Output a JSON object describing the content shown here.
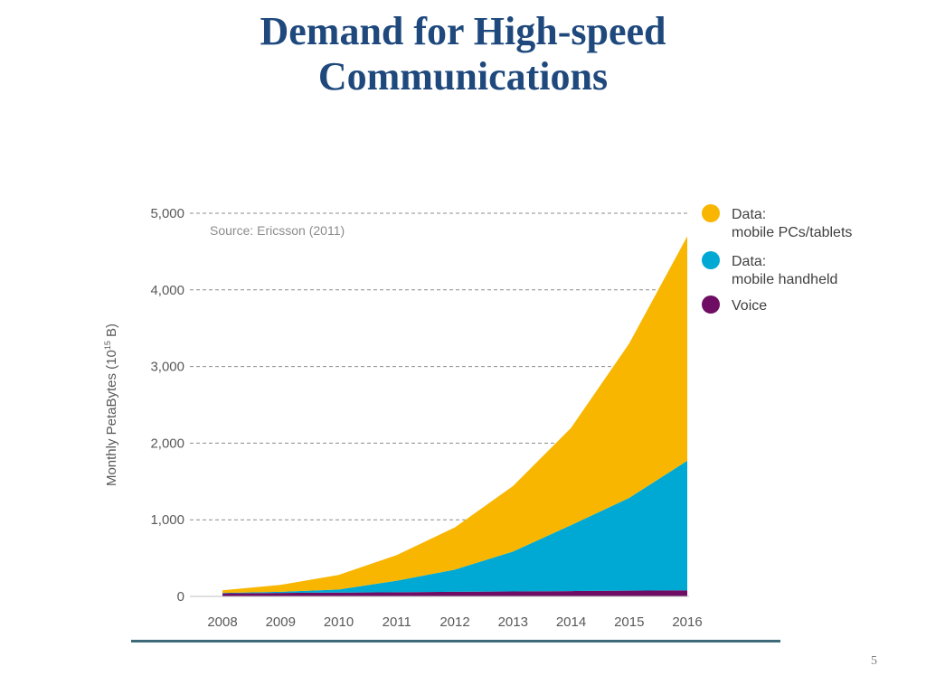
{
  "slide": {
    "title_line1": "Demand for High-speed",
    "title_line2": "Communications",
    "page_number": "5"
  },
  "chart_data": {
    "type": "area",
    "stacked": true,
    "annotation": "Source: Ericsson (2011)",
    "ylabel": "Monthly PetaBytes (10",
    "ylabel_sup": "15",
    "ylabel_end": " B)",
    "xlabel": "",
    "ylim": [
      0,
      5000
    ],
    "yticks": [
      0,
      1000,
      2000,
      3000,
      4000,
      5000
    ],
    "ytick_labels": [
      "0",
      "1,000",
      "2,000",
      "3,000",
      "4,000",
      "5,000"
    ],
    "grid": true,
    "legend_position": "right",
    "categories": [
      "2008",
      "2009",
      "2010",
      "2011",
      "2012",
      "2013",
      "2014",
      "2015",
      "2016"
    ],
    "series": [
      {
        "name": "Voice",
        "color": "#6e0d63",
        "values": [
          40,
          45,
          50,
          55,
          60,
          65,
          70,
          75,
          80
        ]
      },
      {
        "name": "Data: mobile handheld",
        "legend_line1": "Data:",
        "legend_line2": "mobile handheld",
        "color": "#00a9d4",
        "values": [
          5,
          15,
          40,
          150,
          290,
          520,
          860,
          1210,
          1690
        ]
      },
      {
        "name": "Data: mobile PCs/tablets",
        "legend_line1": "Data:",
        "legend_line2": "mobile PCs/tablets",
        "color": "#f8b600",
        "values": [
          35,
          90,
          190,
          335,
          550,
          855,
          1270,
          2015,
          2930
        ]
      }
    ]
  }
}
